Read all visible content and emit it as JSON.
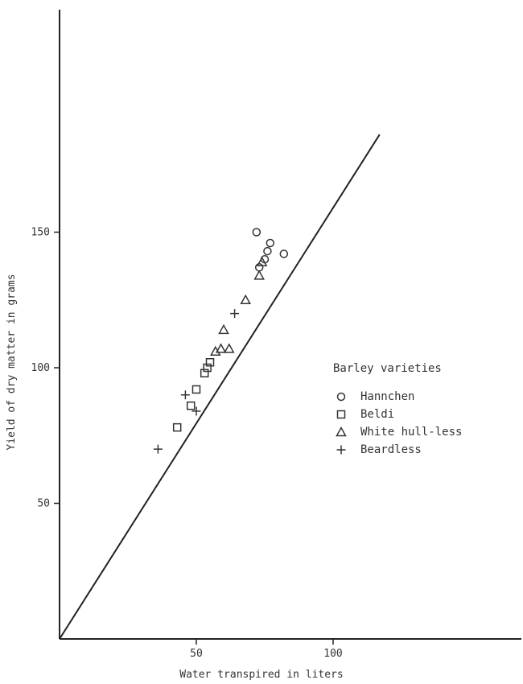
{
  "chart_data": {
    "type": "scatter",
    "xlabel": "Water transpired in liters",
    "ylabel": "Yield of dry matter in grams",
    "xlim": [
      0,
      165
    ],
    "ylim": [
      0,
      195
    ],
    "x_ticks": [
      50,
      100
    ],
    "y_ticks": [
      50,
      100,
      150
    ],
    "grid": false,
    "legend_title": "Barley varieties",
    "legend_position": "right",
    "fit_line": {
      "x": [
        0,
        117
      ],
      "y": [
        0,
        186
      ]
    },
    "series": [
      {
        "name": "Hannchen",
        "marker": "circle",
        "x": [
          72,
          73,
          75,
          76,
          77,
          82
        ],
        "y": [
          150,
          137,
          140,
          143,
          146,
          142
        ]
      },
      {
        "name": "Beldi",
        "marker": "square",
        "x": [
          43,
          48,
          50,
          53,
          54,
          55
        ],
        "y": [
          78,
          86,
          92,
          98,
          100,
          102
        ]
      },
      {
        "name": "White hull-less",
        "marker": "triangle",
        "x": [
          57,
          59,
          60,
          62,
          68,
          73,
          74
        ],
        "y": [
          106,
          107,
          114,
          107,
          125,
          134,
          139
        ]
      },
      {
        "name": "Beardless",
        "marker": "plus",
        "x": [
          36,
          46,
          50,
          64
        ],
        "y": [
          70,
          90,
          84,
          120
        ]
      }
    ]
  }
}
